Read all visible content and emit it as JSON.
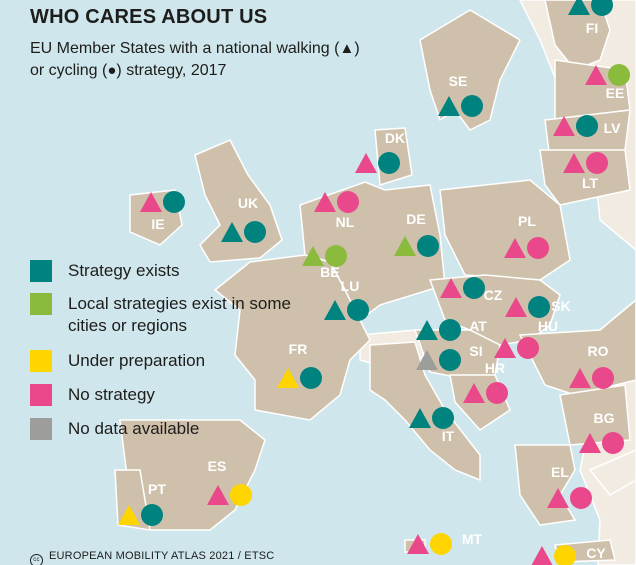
{
  "title": "WHO CARES ABOUT US",
  "subtitle_pre": "EU Member States with a national walking (",
  "subtitle_mid": ")",
  "subtitle_line2_pre": "or cycling (",
  "subtitle_line2_post": ") strategy, 2017",
  "walking_glyph": "▲",
  "cycling_glyph": "●",
  "credit": "EUROPEAN MOBILITY ATLAS 2021 / ETSC",
  "credit_icon": "cc",
  "colors": {
    "exists": "#00827f",
    "local": "#8bbb3d",
    "preparation": "#ffd500",
    "none": "#e9488a",
    "nodata": "#9d9d9c",
    "sea": "#cfe6ec",
    "eu_land": "#cfc0ab",
    "other_land": "#f2ebe2",
    "label": "#ffffff"
  },
  "legend": [
    {
      "key": "exists",
      "label": "Strategy exists"
    },
    {
      "key": "local",
      "label": "Local strategies exist in some cities or regions"
    },
    {
      "key": "preparation",
      "label": "Under preparation"
    },
    {
      "key": "none",
      "label": "No strategy"
    },
    {
      "key": "nodata",
      "label": "No data available"
    }
  ],
  "countries": [
    {
      "code": "FI",
      "walking": "exists",
      "cycling": "exists"
    },
    {
      "code": "SE",
      "walking": "exists",
      "cycling": "exists"
    },
    {
      "code": "EE",
      "walking": "none",
      "cycling": "local"
    },
    {
      "code": "LV",
      "walking": "none",
      "cycling": "exists"
    },
    {
      "code": "LT",
      "walking": "none",
      "cycling": "none"
    },
    {
      "code": "DK",
      "walking": "none",
      "cycling": "exists"
    },
    {
      "code": "IE",
      "walking": "none",
      "cycling": "exists"
    },
    {
      "code": "UK",
      "walking": "exists",
      "cycling": "exists"
    },
    {
      "code": "NL",
      "walking": "none",
      "cycling": "none"
    },
    {
      "code": "DE",
      "walking": "local",
      "cycling": "exists"
    },
    {
      "code": "PL",
      "walking": "none",
      "cycling": "none"
    },
    {
      "code": "BE",
      "walking": "local",
      "cycling": "local"
    },
    {
      "code": "LU",
      "walking": "exists",
      "cycling": "exists"
    },
    {
      "code": "CZ",
      "walking": "none",
      "cycling": "exists"
    },
    {
      "code": "SK",
      "walking": "none",
      "cycling": "exists"
    },
    {
      "code": "AT",
      "walking": "exists",
      "cycling": "exists"
    },
    {
      "code": "HU",
      "walking": "none",
      "cycling": "none"
    },
    {
      "code": "FR",
      "walking": "preparation",
      "cycling": "exists"
    },
    {
      "code": "SI",
      "walking": "nodata",
      "cycling": "exists"
    },
    {
      "code": "RO",
      "walking": "none",
      "cycling": "none"
    },
    {
      "code": "HR",
      "walking": "none",
      "cycling": "none"
    },
    {
      "code": "IT",
      "walking": "exists",
      "cycling": "exists"
    },
    {
      "code": "BG",
      "walking": "none",
      "cycling": "none"
    },
    {
      "code": "ES",
      "walking": "none",
      "cycling": "preparation"
    },
    {
      "code": "PT",
      "walking": "preparation",
      "cycling": "exists"
    },
    {
      "code": "EL",
      "walking": "none",
      "cycling": "none"
    },
    {
      "code": "MT",
      "walking": "none",
      "cycling": "preparation"
    },
    {
      "code": "CY",
      "walking": "none",
      "cycling": "preparation"
    }
  ]
}
